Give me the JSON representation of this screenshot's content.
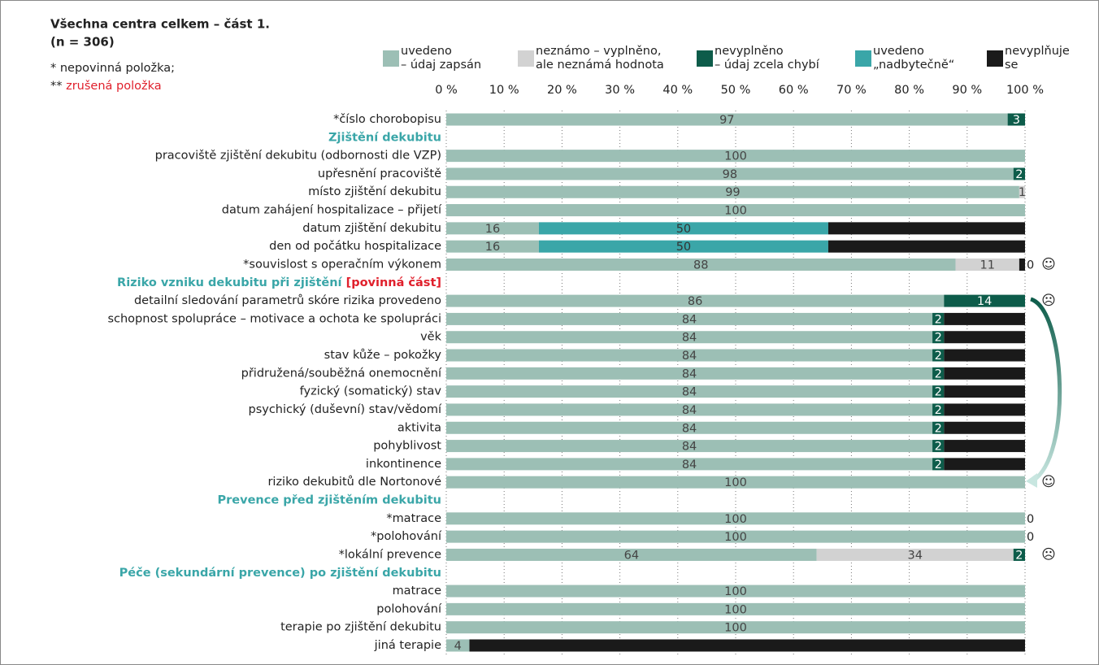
{
  "chart_data": {
    "type": "stacked-bar",
    "orientation": "horizontal",
    "title": "Všechna centra celkem – část 1.",
    "subtitle": "(n = 306)",
    "notes": [
      "* nepovinná položka;",
      "** "
    ],
    "notes_red": "zrušená položka",
    "heading_color": "#3aa6a8",
    "required_color": "#e0202c",
    "categories": [
      "*číslo chorobopisu",
      "Zjištění dekubitu",
      "pracoviště zjištění dekubitu (odbornosti dle VZP)",
      "upřesnění pracoviště",
      "místo zjištění dekubitu",
      "datum zahájení hospitalizace – přijetí",
      "datum zjištění dekubitu",
      "den od počátku hospitalizace",
      "*souvislost s operačním výkonem",
      "Riziko vzniku dekubitu při zjištění [povinná část]",
      "detailní sledování parametrů skóre rizika provedeno",
      "schopnost spolupráce – motivace a ochota ke spolupráci",
      "věk",
      "stav kůže – pokožky",
      "přidružená/souběžná onemocnění",
      "fyzický (somatický) stav",
      "psychický (duševní) stav/vědomí",
      "aktivita",
      "pohyblivost",
      "inkontinence",
      "riziko dekubitů dle Nortonové",
      "Prevence před zjištěním dekubitu",
      "*matrace",
      "*polohování",
      "*lokální prevence",
      "Péče (sekundární prevence) po zjištění dekubitu",
      "matrace",
      "polohování",
      "terapie po zjištění dekubitu",
      "jiná terapie"
    ],
    "series": [
      {
        "name": "uvedeno\n– údaj zapsán",
        "color": "#9cbfb5",
        "label_color": "#444444",
        "values": [
          97,
          null,
          100,
          98,
          99,
          100,
          16,
          16,
          88,
          null,
          86,
          84,
          84,
          84,
          84,
          84,
          84,
          84,
          84,
          84,
          100,
          null,
          100,
          100,
          64,
          null,
          100,
          100,
          100,
          4
        ],
        "value_labels": [
          "97",
          null,
          "100",
          "98",
          "99",
          "100",
          "16",
          "16",
          "88",
          null,
          "86",
          "84",
          "84",
          "84",
          "84",
          "84",
          "84",
          "84",
          "84",
          "84",
          "100",
          null,
          "100",
          "100",
          "64",
          null,
          "100",
          "100",
          "100",
          "4"
        ]
      },
      {
        "name": "neznámo – vyplněno,\nale neznámá hodnota",
        "color": "#d2d2d2",
        "label_color": "#444444",
        "values": [
          0,
          null,
          0,
          0,
          1,
          0,
          0,
          0,
          11,
          null,
          0,
          0,
          0,
          0,
          0,
          0,
          0,
          0,
          0,
          0,
          0,
          null,
          0,
          0,
          34,
          null,
          0,
          0,
          0,
          0
        ],
        "value_labels": [
          null,
          null,
          null,
          null,
          "1",
          null,
          null,
          null,
          "11",
          null,
          null,
          null,
          null,
          null,
          null,
          null,
          null,
          null,
          null,
          null,
          null,
          null,
          null,
          null,
          "34",
          null,
          null,
          null,
          null,
          null
        ]
      },
      {
        "name": "nevyplněno\n– údaj zcela chybí",
        "color": "#0d5c4a",
        "label_color": "#ffffff",
        "values": [
          3,
          null,
          0,
          2,
          0,
          0,
          0,
          0,
          0,
          null,
          14,
          2,
          2,
          2,
          2,
          2,
          2,
          2,
          2,
          2,
          0,
          null,
          0,
          0,
          2,
          null,
          0,
          0,
          0,
          0
        ],
        "value_labels": [
          "3",
          null,
          null,
          "2",
          null,
          null,
          null,
          null,
          "0",
          null,
          "14",
          "2",
          "2",
          "2",
          "2",
          "2",
          "2",
          "2",
          "2",
          "2",
          null,
          null,
          "0",
          "0",
          "2",
          null,
          null,
          null,
          null,
          null
        ]
      },
      {
        "name": "uvedeno\n„nadbytečně“",
        "color": "#3aa6a8",
        "label_color": "#333333",
        "values": [
          0,
          null,
          0,
          0,
          0,
          0,
          50,
          50,
          0,
          null,
          0,
          0,
          0,
          0,
          0,
          0,
          0,
          0,
          0,
          0,
          0,
          null,
          0,
          0,
          0,
          null,
          0,
          0,
          0,
          0
        ],
        "value_labels": [
          null,
          null,
          null,
          null,
          null,
          null,
          "50",
          "50",
          null,
          null,
          null,
          null,
          null,
          null,
          null,
          null,
          null,
          null,
          null,
          null,
          null,
          null,
          null,
          null,
          null,
          null,
          null,
          null,
          null,
          null
        ]
      },
      {
        "name": "nevyplňuje\nse",
        "color": "#1a1a1a",
        "label_color": "#ffffff",
        "values": [
          0,
          null,
          0,
          0,
          0,
          0,
          34,
          34,
          1,
          null,
          0,
          14,
          14,
          14,
          14,
          14,
          14,
          14,
          14,
          14,
          0,
          null,
          0,
          0,
          0,
          null,
          0,
          0,
          0,
          96
        ],
        "value_labels": [
          null,
          null,
          null,
          null,
          null,
          null,
          null,
          null,
          null,
          null,
          null,
          null,
          null,
          null,
          null,
          null,
          null,
          null,
          null,
          null,
          null,
          null,
          null,
          null,
          null,
          null,
          null,
          null,
          null,
          null
        ]
      }
    ],
    "annotations": [
      {
        "category": "*souvislost s operačním výkonem",
        "text": "☺"
      },
      {
        "category": "detailní sledování parametrů skóre rizika provedeno",
        "text": "☹"
      },
      {
        "category": "riziko dekubitů dle Nortonové",
        "text": "☺"
      },
      {
        "category": "*lokální prevence",
        "text": "☹"
      }
    ],
    "xlim": [
      0,
      100
    ],
    "xticks": [
      {
        "value": 0,
        "label": "0 %"
      },
      {
        "value": 10,
        "label": "10 %"
      },
      {
        "value": 20,
        "label": "20 %"
      },
      {
        "value": 30,
        "label": "30 %"
      },
      {
        "value": 40,
        "label": "40 %"
      },
      {
        "value": 50,
        "label": "50 %"
      },
      {
        "value": 60,
        "label": "60 %"
      },
      {
        "value": 70,
        "label": "70 %"
      },
      {
        "value": 80,
        "label": "80 %"
      },
      {
        "value": 90,
        "label": "90 %"
      },
      {
        "value": 100,
        "label": "100 %"
      }
    ],
    "grid": true
  }
}
